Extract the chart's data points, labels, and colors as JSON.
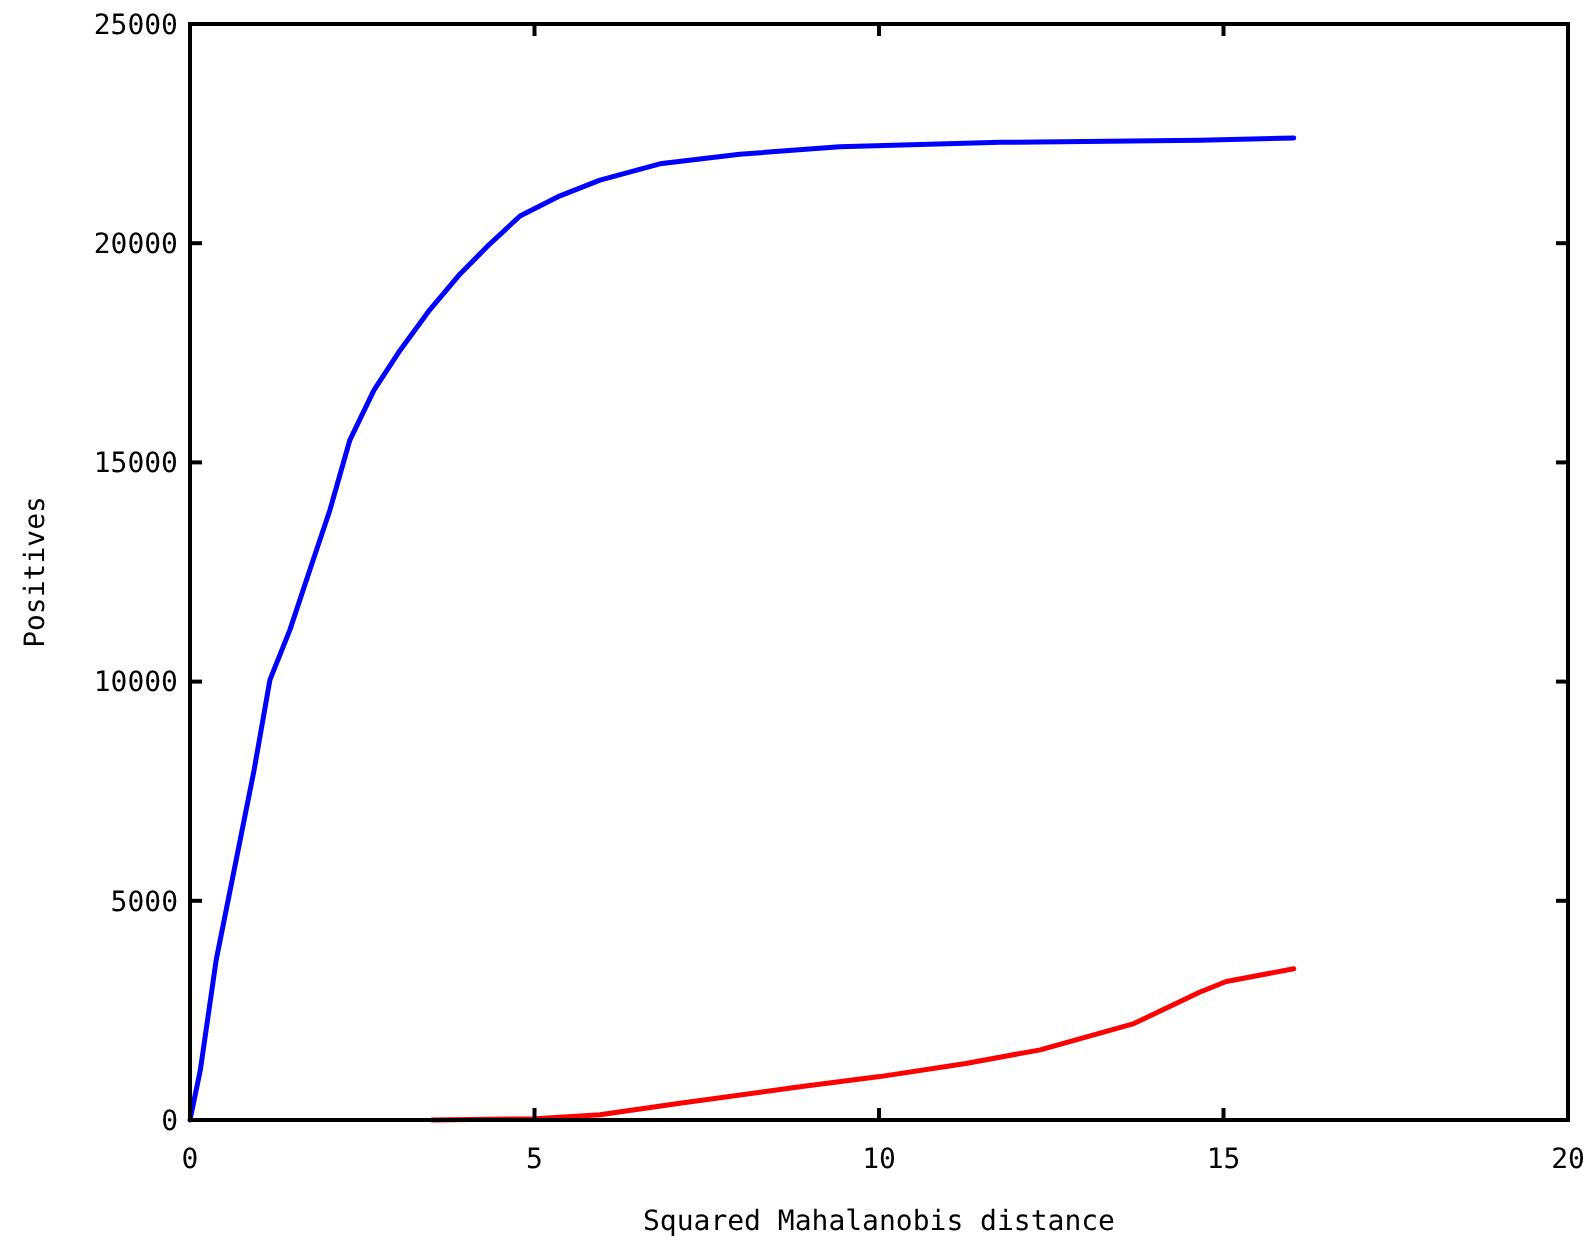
{
  "chart_data": {
    "type": "line",
    "xlabel": "Squared Mahalanobis distance",
    "ylabel": "Positives",
    "xlim": [
      0,
      20
    ],
    "xticks": [
      0,
      5,
      10,
      15,
      20
    ],
    "ylim": [
      0,
      25000
    ],
    "yticks": [
      0,
      5000,
      10000,
      15000,
      20000,
      25000
    ],
    "grid": false,
    "line_style": "solid",
    "series": [
      {
        "color": "#0000ff",
        "x": [
          0,
          0.15,
          0.38,
          0.67,
          0.93,
          1.16,
          1.45,
          1.74,
          2.03,
          2.32,
          2.67,
          3.05,
          3.48,
          3.92,
          4.35,
          4.79,
          5.37,
          5.95,
          6.82,
          7.98,
          9.43,
          11.76,
          14.66,
          16.02
        ],
        "values": [
          0,
          1140,
          3650,
          5930,
          7980,
          10040,
          11180,
          12550,
          13910,
          15510,
          16650,
          17560,
          18480,
          19300,
          19980,
          20620,
          21080,
          21440,
          21810,
          22030,
          22200,
          22300,
          22350,
          22400
        ]
      },
      {
        "color": "#ff0000",
        "x": [
          3.51,
          5.02,
          5.95,
          7.11,
          8.85,
          10.01,
          11.26,
          12.34,
          13.7,
          14.66,
          15.04,
          16.02
        ],
        "values": [
          0,
          30,
          120,
          380,
          760,
          990,
          1290,
          1600,
          2200,
          2920,
          3160,
          3450
        ]
      }
    ]
  }
}
